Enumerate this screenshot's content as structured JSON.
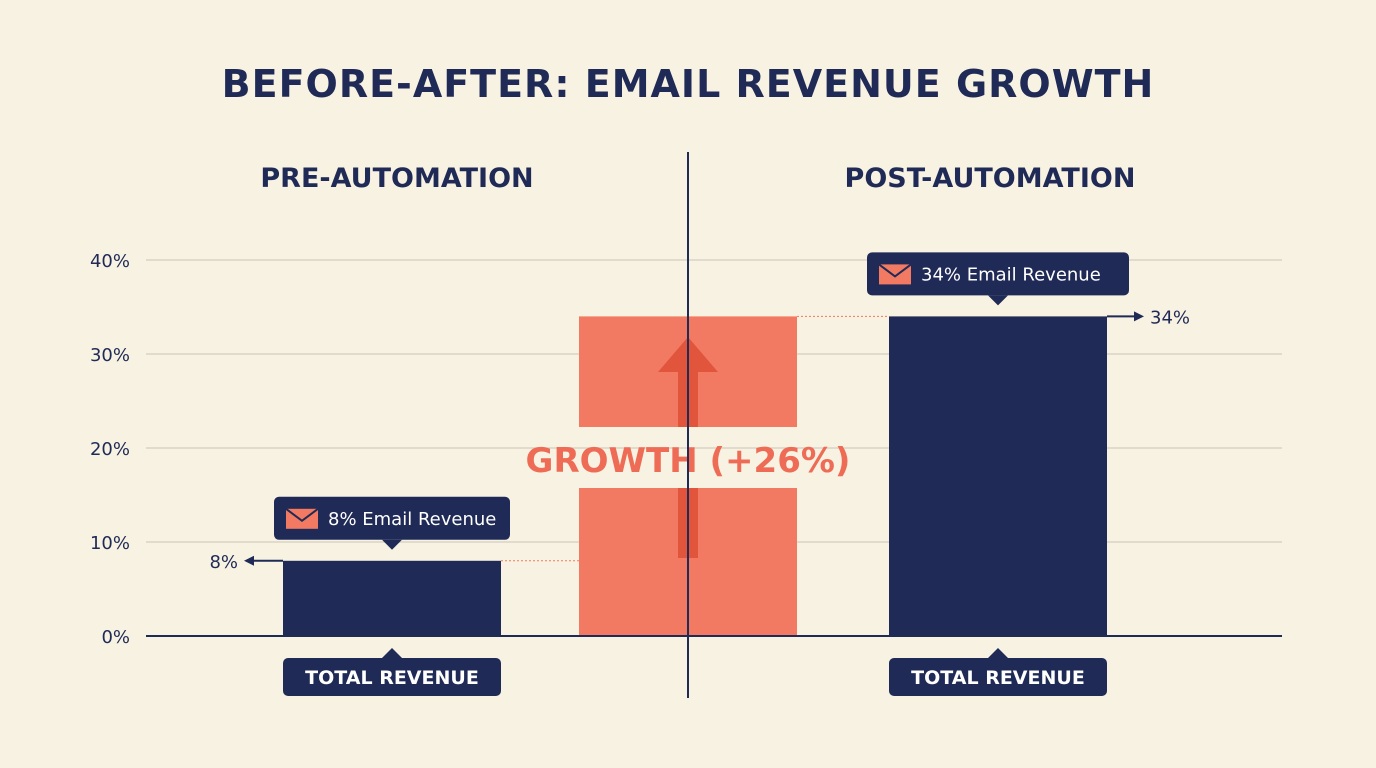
{
  "chart_data": {
    "type": "bar",
    "title": "BEFORE-AFTER: EMAIL REVENUE GROWTH",
    "panels": [
      "PRE-AUTOMATION",
      "POST-AUTOMATION"
    ],
    "categories": [
      "TOTAL REVENUE",
      "TOTAL REVENUE"
    ],
    "values": [
      8,
      34
    ],
    "value_labels": [
      "8%",
      "34%"
    ],
    "callouts": [
      "8% Email Revenue",
      "34% Email Revenue"
    ],
    "growth": {
      "from": 8,
      "to": 34,
      "label": "GROWTH (+26%)"
    },
    "ylim": [
      0,
      40
    ],
    "yticks": [
      0,
      10,
      20,
      30,
      40
    ],
    "ytick_labels": [
      "0%",
      "10%",
      "20%",
      "30%",
      "40%"
    ],
    "grid": true,
    "colors": {
      "bar": "#1f2a56",
      "growth": "#f27a62",
      "arrow": "#e0553c",
      "background": "#f8f2e2"
    }
  }
}
